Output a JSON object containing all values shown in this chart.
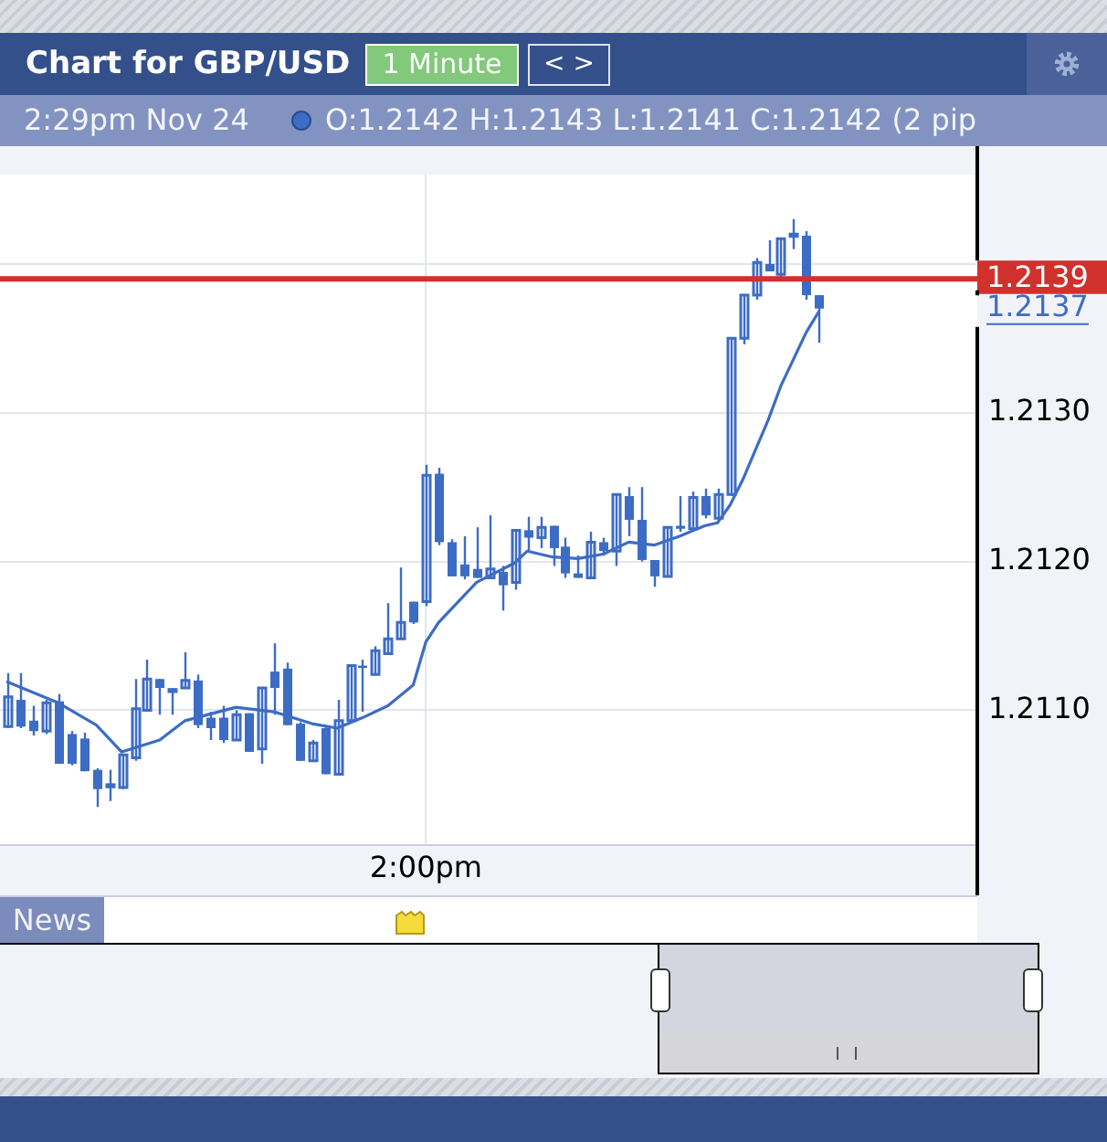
{
  "chart_data": {
    "type": "candlestick",
    "title": "Chart for GBP/USD",
    "subtitle": "2:29pm Nov 24",
    "annotations": [
      "1 Minute",
      "< >",
      "O:1.2142 H:1.2143 L:1.2141 C:1.2142 (2 pip",
      "News",
      "1.2137"
    ],
    "color": "#3d6cc5",
    "categories": [
      null,
      null,
      null,
      null,
      null,
      null,
      null,
      null,
      null,
      null,
      null,
      null,
      null,
      null,
      null,
      null,
      null,
      null,
      null,
      null,
      null,
      null,
      null,
      null,
      null,
      null,
      null,
      null,
      null,
      null,
      null,
      null,
      null,
      "2:00pm",
      null,
      null,
      null,
      null,
      null,
      null,
      null,
      null,
      null,
      null,
      null,
      null,
      null,
      null,
      null,
      null,
      null,
      null,
      null,
      null,
      null,
      null,
      null,
      null,
      null,
      null,
      null,
      null,
      null,
      null,
      null
    ],
    "ohlc": [
      [
        1.21089,
        1.21125,
        1.21088,
        1.21109
      ],
      [
        1.21107,
        1.21125,
        1.21088,
        1.21089
      ],
      [
        1.21093,
        1.21103,
        1.21083,
        1.21086
      ],
      [
        1.21086,
        1.21107,
        1.21084,
        1.21105
      ],
      [
        1.21106,
        1.21111,
        1.21064,
        1.21064
      ],
      [
        1.21084,
        1.21086,
        1.21063,
        1.21064
      ],
      [
        1.21081,
        1.21085,
        1.21059,
        1.21059
      ],
      [
        1.2106,
        1.21061,
        1.21035,
        1.21047
      ],
      [
        1.21049,
        1.2106,
        1.21039,
        1.2105
      ],
      [
        1.21048,
        1.2107,
        1.21047,
        1.2107
      ],
      [
        1.21068,
        1.21121,
        1.21066,
        1.21101
      ],
      [
        1.211,
        1.21134,
        1.211,
        1.21121
      ],
      [
        1.21121,
        1.21121,
        1.21097,
        1.21115
      ],
      [
        1.21114,
        1.21115,
        1.21097,
        1.21114
      ],
      [
        1.21115,
        1.21139,
        1.21115,
        1.2112
      ],
      [
        1.2112,
        1.21124,
        1.21088,
        1.2109
      ],
      [
        1.21095,
        1.21099,
        1.2108,
        1.21088
      ],
      [
        1.21095,
        1.21103,
        1.21078,
        1.2108
      ],
      [
        1.2108,
        1.211,
        1.2108,
        1.21097
      ],
      [
        1.21098,
        1.21098,
        1.21072,
        1.21072
      ],
      [
        1.21074,
        1.21115,
        1.21064,
        1.21115
      ],
      [
        1.21126,
        1.21145,
        1.21097,
        1.21115
      ],
      [
        1.21128,
        1.21132,
        1.2109,
        1.2109
      ],
      [
        1.21091,
        1.21092,
        1.21066,
        1.21066
      ],
      [
        1.21066,
        1.2108,
        1.21066,
        1.21078
      ],
      [
        1.21088,
        1.2109,
        1.21057,
        1.21057
      ],
      [
        1.21057,
        1.21107,
        1.21057,
        1.21093
      ],
      [
        1.21093,
        1.2113,
        1.21092,
        1.2113
      ],
      [
        1.2113,
        1.21134,
        1.21099,
        1.21129
      ],
      [
        1.21124,
        1.21143,
        1.21124,
        1.2114
      ],
      [
        1.21138,
        1.21172,
        1.21138,
        1.21148
      ],
      [
        1.21148,
        1.21196,
        1.21148,
        1.21159
      ],
      [
        1.21173,
        1.21173,
        1.21158,
        1.21159
      ],
      [
        1.21173,
        1.21265,
        1.2117,
        1.21258
      ],
      [
        1.21259,
        1.21263,
        1.21211,
        1.21213
      ],
      [
        1.21213,
        1.21215,
        1.2119,
        1.2119
      ],
      [
        1.21198,
        1.21217,
        1.21188,
        1.2119
      ],
      [
        1.21195,
        1.21223,
        1.21189,
        1.21189
      ],
      [
        1.21189,
        1.21231,
        1.21189,
        1.21195
      ],
      [
        1.21193,
        1.21197,
        1.21167,
        1.21184
      ],
      [
        1.21186,
        1.21221,
        1.21181,
        1.21221
      ],
      [
        1.21221,
        1.2123,
        1.21207,
        1.21216
      ],
      [
        1.21216,
        1.2123,
        1.21209,
        1.21223
      ],
      [
        1.21224,
        1.21224,
        1.21197,
        1.21209
      ],
      [
        1.2121,
        1.21216,
        1.21189,
        1.21192
      ],
      [
        1.21192,
        1.21204,
        1.21189,
        1.21189
      ],
      [
        1.21189,
        1.2122,
        1.21189,
        1.21213
      ],
      [
        1.21213,
        1.21216,
        1.21204,
        1.21207
      ],
      [
        1.21207,
        1.21245,
        1.21197,
        1.21245
      ],
      [
        1.21244,
        1.2125,
        1.21217,
        1.21228
      ],
      [
        1.21228,
        1.2125,
        1.212,
        1.21201
      ],
      [
        1.21201,
        1.21201,
        1.21183,
        1.2119
      ],
      [
        1.2119,
        1.21223,
        1.2119,
        1.21223
      ],
      [
        1.21224,
        1.21244,
        1.2122,
        1.21222
      ],
      [
        1.21222,
        1.21247,
        1.21221,
        1.21243
      ],
      [
        1.21244,
        1.21249,
        1.21229,
        1.21231
      ],
      [
        1.21229,
        1.21249,
        1.21229,
        1.21245
      ],
      [
        1.21245,
        1.2135,
        1.21244,
        1.2135
      ],
      [
        1.2135,
        1.21379,
        1.21346,
        1.21379
      ],
      [
        1.21379,
        1.21404,
        1.21376,
        1.21401
      ],
      [
        1.214,
        1.21416,
        1.21395,
        1.21395
      ],
      [
        1.21393,
        1.21417,
        1.21389,
        1.21417
      ],
      [
        1.2142,
        1.2143,
        1.2141,
        1.2142
      ],
      [
        1.21419,
        1.21422,
        1.21376,
        1.21379
      ],
      [
        1.21379,
        1.21379,
        1.21347,
        1.2137
      ]
    ],
    "series": [
      {
        "type": "line",
        "color": "#3d6cc5",
        "values": [
          1.21119,
          null,
          null,
          null,
          1.21105,
          null,
          null,
          1.2109,
          null,
          1.21072,
          null,
          null,
          1.2108,
          null,
          1.21093,
          null,
          null,
          null,
          1.21102,
          null,
          null,
          1.21099,
          null,
          null,
          1.21091,
          null,
          1.21088,
          null,
          1.21095,
          null,
          1.21103,
          null,
          1.21117,
          1.21146,
          1.21159,
          null,
          null,
          1.21186,
          null,
          null,
          1.21199,
          1.21207,
          null,
          1.21203,
          null,
          1.21202,
          null,
          1.21205,
          null,
          1.21213,
          null,
          1.21211,
          null,
          1.21217,
          null,
          1.21224,
          1.21226,
          1.21238,
          1.21255,
          1.21275,
          1.21295,
          1.21318,
          1.21336,
          1.21354,
          1.21368
        ]
      }
    ],
    "ylim": [
      1.2101,
      1.2146
    ],
    "yticks": [
      {
        "value": 1.211,
        "label": "1.2110"
      },
      {
        "value": 1.212,
        "label": "1.2120"
      },
      {
        "value": 1.213,
        "label": "1.2130"
      },
      {
        "value": 1.214,
        "label": null
      }
    ],
    "ref_lines": [
      {
        "axis": "y",
        "value": 1.2139,
        "label": "1.2139",
        "color": "#d0312d"
      }
    ],
    "grid": true
  }
}
